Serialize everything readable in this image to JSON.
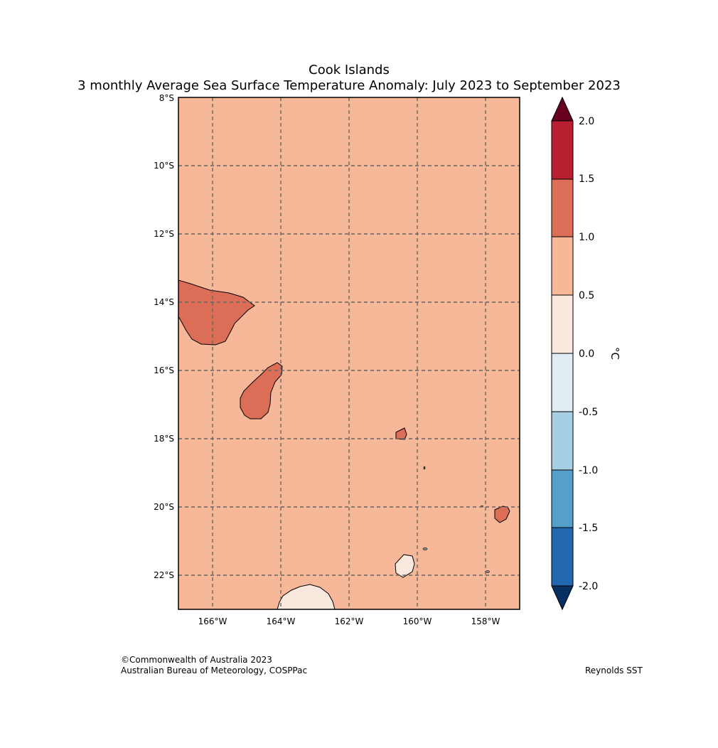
{
  "title": {
    "line1": "Cook Islands",
    "line2": "3 monthly Average Sea Surface Temperature Anomaly: July 2023 to September 2023"
  },
  "map": {
    "latitude_labels": [
      "8°S",
      "10°S",
      "12°S",
      "14°S",
      "16°S",
      "18°S",
      "20°S",
      "22°S"
    ],
    "longitude_labels": [
      "166°W",
      "164°W",
      "162°W",
      "160°W",
      "158°W"
    ],
    "background_anomaly_band": "0.5 to 1.0",
    "regions": [
      {
        "name": "anomaly-1.0-1.5-northwest",
        "band": "1.0 to 1.5"
      },
      {
        "name": "anomaly-1.0-1.5-west",
        "band": "1.0 to 1.5"
      },
      {
        "name": "anomaly-1.0-1.5-small-north",
        "band": "1.0 to 1.5"
      },
      {
        "name": "anomaly-1.0-1.5-small-east",
        "band": "1.0 to 1.5"
      },
      {
        "name": "anomaly-0.0-0.5-south-central",
        "band": "0.0 to 0.5"
      },
      {
        "name": "anomaly-0.0-0.5-bottom",
        "band": "0.0 to 0.5"
      }
    ]
  },
  "colorbar": {
    "unit_label": "°C",
    "levels": [
      "2.0",
      "1.5",
      "1.0",
      "0.5",
      "0.0",
      "-0.5",
      "-1.0",
      "-1.5",
      "-2.0"
    ],
    "colors": {
      "over": "#67001f",
      "b_1_5_2_0": "#b82031",
      "b_1_0_1_5": "#dc6e57",
      "b_0_5_1_0": "#f6b899",
      "b_0_0_0_5": "#f9e8de",
      "b_m0_5_0_0": "#e2edf3",
      "b_m1_0_m0_5": "#a6cfe3",
      "b_m1_5_m1_0": "#559fcb",
      "b_m2_0_m1_5": "#2268b0",
      "under": "#053061"
    }
  },
  "footer": {
    "copyright": "©Commonwealth of Australia 2023",
    "agency": "Australian Bureau of Meteorology, COSPPac",
    "source": "Reynolds SST"
  }
}
